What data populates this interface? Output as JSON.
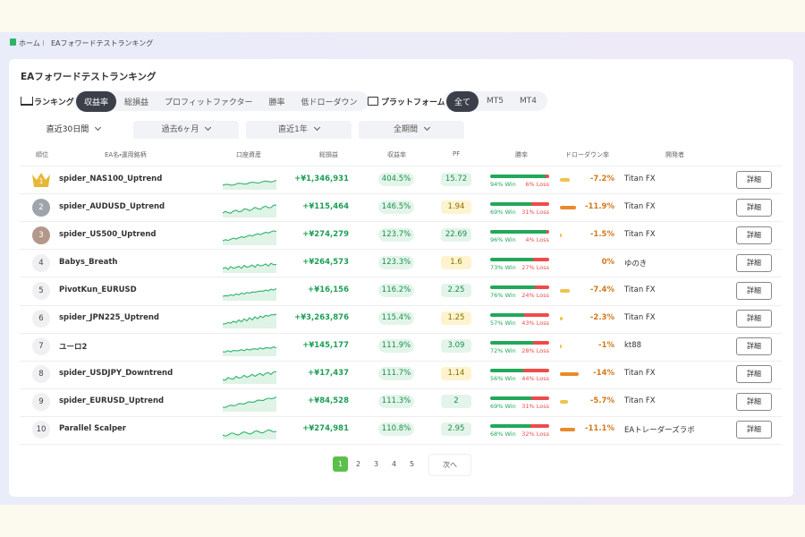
{
  "breadcrumb": {
    "home": "ホーム",
    "current": "EAフォワードテストランキング"
  },
  "title": "EAフォワードテストランキング",
  "ranking": {
    "label": "ランキング",
    "tabs": [
      "収益率",
      "総損益",
      "プロフィットファクター",
      "勝率",
      "低ドローダウン"
    ]
  },
  "platform": {
    "label": "プラットフォーム",
    "tabs": [
      "全て",
      "MT5",
      "MT4"
    ]
  },
  "periods": [
    "直近30日間",
    "過去6ヶ月",
    "直近1年",
    "全期間"
  ],
  "table": {
    "headers": [
      "順位",
      "EA名・運用銘柄",
      "口座資産",
      "総損益",
      "収益率",
      "PF",
      "勝率",
      "ドローダウン率",
      "開発者"
    ],
    "rows": [
      {
        "rank": "1",
        "name": "spider_NAS100_Uptrend",
        "profit": "+¥1,346,931",
        "return": "404.5%",
        "pf": "15.72",
        "win": "94% Win",
        "loss": "6% Loss",
        "drawdown": "-7.2%",
        "developer": "Titan FX",
        "button": "詳細"
      },
      {
        "rank": "2",
        "name": "spider_AUDUSD_Uptrend",
        "profit": "+¥115,464",
        "return": "146.5%",
        "pf": "1.94",
        "win": "69% Win",
        "loss": "31% Loss",
        "drawdown": "-11.9%",
        "developer": "Titan FX",
        "button": "詳細"
      },
      {
        "rank": "3",
        "name": "spider_US500_Uptrend",
        "profit": "+¥274,279",
        "return": "123.7%",
        "pf": "22.69",
        "win": "96% Win",
        "loss": "4% Loss",
        "drawdown": "-1.5%",
        "developer": "Titan FX",
        "button": "詳細"
      },
      {
        "rank": "4",
        "name": "Babys_Breath",
        "profit": "+¥264,573",
        "return": "123.3%",
        "pf": "1.6",
        "win": "73% Win",
        "loss": "27% Loss",
        "drawdown": "0%",
        "developer": "ゆのき",
        "button": "詳細"
      },
      {
        "rank": "5",
        "name": "PivotKun_EURUSD",
        "profit": "+¥16,156",
        "return": "116.2%",
        "pf": "2.25",
        "win": "76% Win",
        "loss": "24% Loss",
        "drawdown": "-7.4%",
        "developer": "Titan FX",
        "button": "詳細"
      },
      {
        "rank": "6",
        "name": "spider_JPN225_Uptrend",
        "profit": "+¥3,263,876",
        "return": "115.4%",
        "pf": "1.25",
        "win": "57% Win",
        "loss": "43% Loss",
        "drawdown": "-2.3%",
        "developer": "Titan FX",
        "button": "詳細"
      },
      {
        "rank": "7",
        "name": "ユーロ2",
        "profit": "+¥145,177",
        "return": "111.9%",
        "pf": "3.09",
        "win": "72% Win",
        "loss": "28% Loss",
        "drawdown": "-1%",
        "developer": "kt88",
        "button": "詳細"
      },
      {
        "rank": "8",
        "name": "spider_USDJPY_Downtrend",
        "profit": "+¥17,437",
        "return": "111.7%",
        "pf": "1.14",
        "win": "56% Win",
        "loss": "44% Loss",
        "drawdown": "-14%",
        "developer": "Titan FX",
        "button": "詳細"
      },
      {
        "rank": "9",
        "name": "spider_EURUSD_Uptrend",
        "profit": "+¥84,528",
        "return": "111.3%",
        "pf": "2",
        "win": "69% Win",
        "loss": "31% Loss",
        "drawdown": "-5.7%",
        "developer": "Titan FX",
        "button": "詳細"
      },
      {
        "rank": "10",
        "name": "Parallel Scalper",
        "profit": "+¥274,981",
        "return": "110.8%",
        "pf": "2.95",
        "win": "68% Win",
        "loss": "32% Loss",
        "drawdown": "-11.1%",
        "developer": "EAトレーダーズラボ",
        "button": "詳細"
      }
    ]
  },
  "pagination": {
    "pages": [
      "1",
      "2",
      "3",
      "4",
      "5"
    ],
    "next": "次へ"
  }
}
